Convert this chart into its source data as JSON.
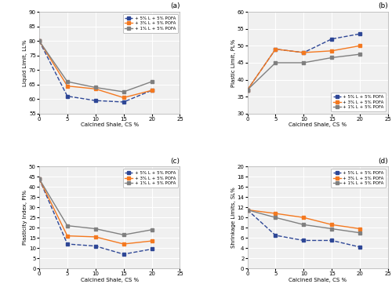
{
  "x": [
    0,
    5,
    10,
    15,
    20
  ],
  "subplot_a": {
    "title": "(a)",
    "ylabel": "Liquid Limit, LL%",
    "xlabel": "Calcined Shale, CS %",
    "ylim": [
      55,
      90
    ],
    "yticks": [
      55,
      60,
      65,
      70,
      75,
      80,
      85,
      90
    ],
    "xlim": [
      0,
      25
    ],
    "xticks": [
      0,
      5,
      10,
      15,
      20,
      25
    ],
    "legend_loc": "upper right",
    "series": {
      "5L": [
        80,
        61,
        59.5,
        59,
        63
      ],
      "3L": [
        80,
        64.5,
        63.5,
        60.5,
        63
      ],
      "1L": [
        80,
        66,
        64,
        62.5,
        66
      ]
    }
  },
  "subplot_b": {
    "title": "(b)",
    "ylabel": "Plastic Limit, PL%",
    "xlabel": "Calcined Shale, CS %",
    "ylim": [
      30,
      60
    ],
    "yticks": [
      30,
      35,
      40,
      45,
      50,
      55,
      60
    ],
    "xlim": [
      0,
      25
    ],
    "xticks": [
      0,
      5,
      10,
      15,
      20,
      25
    ],
    "legend_loc": "lower right",
    "series": {
      "5L": [
        37,
        49,
        48,
        52,
        53.5
      ],
      "3L": [
        37,
        49,
        48,
        48.5,
        50
      ],
      "1L": [
        37,
        45,
        45,
        46.5,
        47.5
      ]
    }
  },
  "subplot_c": {
    "title": "(c)",
    "ylabel": "Plasticity Index, PI%",
    "xlabel": "Calcined Shale, CS %",
    "ylim": [
      0,
      50
    ],
    "yticks": [
      0,
      5,
      10,
      15,
      20,
      25,
      30,
      35,
      40,
      45,
      50
    ],
    "xlim": [
      0,
      25
    ],
    "xticks": [
      0,
      5,
      10,
      15,
      20,
      25
    ],
    "legend_loc": "upper right",
    "series": {
      "5L": [
        44,
        12,
        11,
        7,
        9.5
      ],
      "3L": [
        44,
        16,
        15.5,
        12,
        13.5
      ],
      "1L": [
        44,
        21,
        19.5,
        16.5,
        19
      ]
    }
  },
  "subplot_d": {
    "title": "(d)",
    "ylabel": "Shrinkage Limits, SL%",
    "xlabel": "Calcined Shale, CS %",
    "ylim": [
      0,
      20
    ],
    "yticks": [
      0,
      2,
      4,
      6,
      8,
      10,
      12,
      14,
      16,
      18,
      20
    ],
    "xlim": [
      0,
      25
    ],
    "xticks": [
      0,
      5,
      10,
      15,
      20,
      25
    ],
    "legend_loc": "upper right",
    "series": {
      "5L": [
        11.5,
        6.5,
        5.5,
        5.5,
        4.2
      ],
      "3L": [
        11.5,
        10.8,
        10.0,
        8.6,
        7.8
      ],
      "1L": [
        11.5,
        10.0,
        8.6,
        7.8,
        7.0
      ]
    }
  },
  "colors": {
    "5L": "#2e4796",
    "3L": "#f47920",
    "1L": "#808080"
  },
  "linestyles": {
    "5L": "--",
    "3L": "-",
    "1L": "-"
  },
  "legend_labels": {
    "5L": "+ 5% L + 5% POFA",
    "3L": "+ 3% L + 5% POFA",
    "1L": "+ 1% L + 5% POFA"
  },
  "bg_color": "#f0f0f0",
  "grid_color": "#ffffff",
  "marker": "s",
  "linewidth": 1.0,
  "markersize": 3.5
}
